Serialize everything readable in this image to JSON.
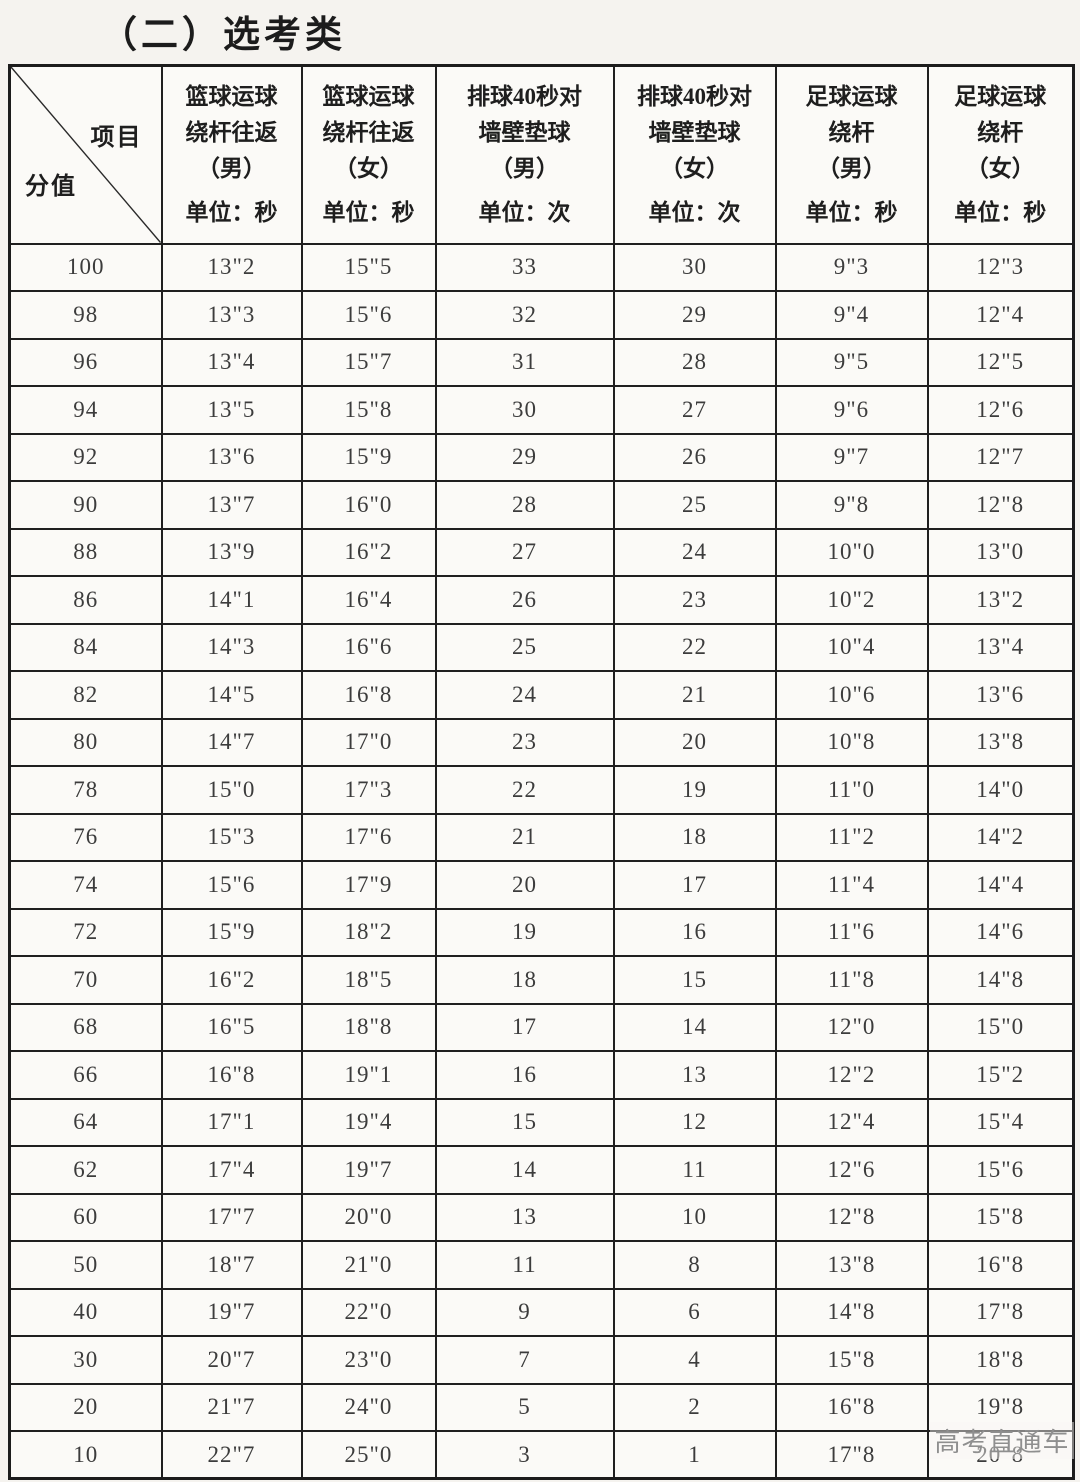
{
  "title": "（二）选考类",
  "corner": {
    "top_right": "项目",
    "bottom_left": "分值"
  },
  "columns": [
    {
      "lines": [
        "篮球运球",
        "绕杆往返",
        "（男）"
      ],
      "unit": "单位：秒"
    },
    {
      "lines": [
        "篮球运球",
        "绕杆往返",
        "（女）"
      ],
      "unit": "单位：秒"
    },
    {
      "lines": [
        "排球40秒对",
        "墙壁垫球",
        "（男）"
      ],
      "unit": "单位：次"
    },
    {
      "lines": [
        "排球40秒对",
        "墙壁垫球",
        "（女）"
      ],
      "unit": "单位：次"
    },
    {
      "lines": [
        "足球运球",
        "绕杆",
        "（男）"
      ],
      "unit": "单位：秒"
    },
    {
      "lines": [
        "足球运球",
        "绕杆",
        "（女）"
      ],
      "unit": "单位：秒"
    }
  ],
  "rows": [
    {
      "score": "100",
      "values": [
        "13\"2",
        "15\"5",
        "33",
        "30",
        "9\"3",
        "12\"3"
      ]
    },
    {
      "score": "98",
      "values": [
        "13\"3",
        "15\"6",
        "32",
        "29",
        "9\"4",
        "12\"4"
      ]
    },
    {
      "score": "96",
      "values": [
        "13\"4",
        "15\"7",
        "31",
        "28",
        "9\"5",
        "12\"5"
      ]
    },
    {
      "score": "94",
      "values": [
        "13\"5",
        "15\"8",
        "30",
        "27",
        "9\"6",
        "12\"6"
      ]
    },
    {
      "score": "92",
      "values": [
        "13\"6",
        "15\"9",
        "29",
        "26",
        "9\"7",
        "12\"7"
      ]
    },
    {
      "score": "90",
      "values": [
        "13\"7",
        "16\"0",
        "28",
        "25",
        "9\"8",
        "12\"8"
      ]
    },
    {
      "score": "88",
      "values": [
        "13\"9",
        "16\"2",
        "27",
        "24",
        "10\"0",
        "13\"0"
      ]
    },
    {
      "score": "86",
      "values": [
        "14\"1",
        "16\"4",
        "26",
        "23",
        "10\"2",
        "13\"2"
      ]
    },
    {
      "score": "84",
      "values": [
        "14\"3",
        "16\"6",
        "25",
        "22",
        "10\"4",
        "13\"4"
      ]
    },
    {
      "score": "82",
      "values": [
        "14\"5",
        "16\"8",
        "24",
        "21",
        "10\"6",
        "13\"6"
      ]
    },
    {
      "score": "80",
      "values": [
        "14\"7",
        "17\"0",
        "23",
        "20",
        "10\"8",
        "13\"8"
      ]
    },
    {
      "score": "78",
      "values": [
        "15\"0",
        "17\"3",
        "22",
        "19",
        "11\"0",
        "14\"0"
      ]
    },
    {
      "score": "76",
      "values": [
        "15\"3",
        "17\"6",
        "21",
        "18",
        "11\"2",
        "14\"2"
      ]
    },
    {
      "score": "74",
      "values": [
        "15\"6",
        "17\"9",
        "20",
        "17",
        "11\"4",
        "14\"4"
      ]
    },
    {
      "score": "72",
      "values": [
        "15\"9",
        "18\"2",
        "19",
        "16",
        "11\"6",
        "14\"6"
      ]
    },
    {
      "score": "70",
      "values": [
        "16\"2",
        "18\"5",
        "18",
        "15",
        "11\"8",
        "14\"8"
      ]
    },
    {
      "score": "68",
      "values": [
        "16\"5",
        "18\"8",
        "17",
        "14",
        "12\"0",
        "15\"0"
      ]
    },
    {
      "score": "66",
      "values": [
        "16\"8",
        "19\"1",
        "16",
        "13",
        "12\"2",
        "15\"2"
      ]
    },
    {
      "score": "64",
      "values": [
        "17\"1",
        "19\"4",
        "15",
        "12",
        "12\"4",
        "15\"4"
      ]
    },
    {
      "score": "62",
      "values": [
        "17\"4",
        "19\"7",
        "14",
        "11",
        "12\"6",
        "15\"6"
      ]
    },
    {
      "score": "60",
      "values": [
        "17\"7",
        "20\"0",
        "13",
        "10",
        "12\"8",
        "15\"8"
      ]
    },
    {
      "score": "50",
      "values": [
        "18\"7",
        "21\"0",
        "11",
        "8",
        "13\"8",
        "16\"8"
      ]
    },
    {
      "score": "40",
      "values": [
        "19\"7",
        "22\"0",
        "9",
        "6",
        "14\"8",
        "17\"8"
      ]
    },
    {
      "score": "30",
      "values": [
        "20\"7",
        "23\"0",
        "7",
        "4",
        "15\"8",
        "18\"8"
      ]
    },
    {
      "score": "20",
      "values": [
        "21\"7",
        "24\"0",
        "5",
        "2",
        "16\"8",
        "19\"8"
      ]
    },
    {
      "score": "10",
      "values": [
        "22\"7",
        "25\"0",
        "3",
        "1",
        "17\"8",
        "20\"8"
      ]
    }
  ],
  "watermark": "高考直通车",
  "colors": {
    "page_background": "#f5f3ef",
    "cell_background": "#fbfaf7",
    "border": "#1f1f1f",
    "header_text": "#1e1e1e",
    "cell_text": "#3c3c3c",
    "watermark_text": "#8f8f8f"
  }
}
